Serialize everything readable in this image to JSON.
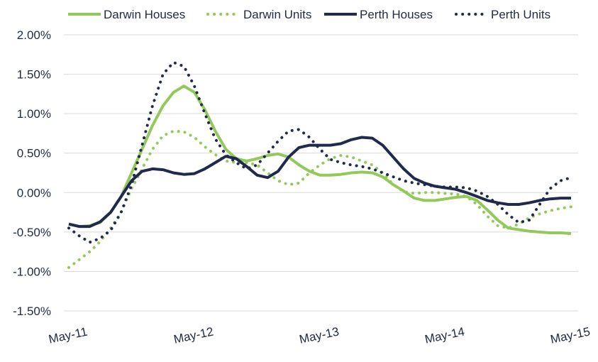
{
  "chart_data": {
    "type": "line",
    "title": "",
    "xlabel": "",
    "ylabel": "",
    "ylim": [
      -0.015,
      0.02
    ],
    "yticks": [
      -0.015,
      -0.01,
      -0.005,
      0,
      0.005,
      0.01,
      0.015,
      0.02
    ],
    "ytick_labels": [
      "-1.50%",
      "-1.00%",
      "-0.50%",
      "0.00%",
      "0.50%",
      "1.00%",
      "1.50%",
      "2.00%"
    ],
    "xtick_labels": [
      "May-11",
      "May-12",
      "May-13",
      "May-14",
      "May-15"
    ],
    "x": [
      "May-11",
      "Jun-11",
      "Jul-11",
      "Aug-11",
      "Sep-11",
      "Oct-11",
      "Nov-11",
      "Dec-11",
      "Jan-12",
      "Feb-12",
      "Mar-12",
      "Apr-12",
      "May-12",
      "Jun-12",
      "Jul-12",
      "Aug-12",
      "Sep-12",
      "Oct-12",
      "Nov-12",
      "Dec-12",
      "Jan-13",
      "Feb-13",
      "Mar-13",
      "Apr-13",
      "May-13",
      "Jun-13",
      "Jul-13",
      "Aug-13",
      "Sep-13",
      "Oct-13",
      "Nov-13",
      "Dec-13",
      "Jan-14",
      "Feb-14",
      "Mar-14",
      "Apr-14",
      "May-14",
      "Jun-14",
      "Jul-14",
      "Aug-14",
      "Sep-14",
      "Oct-14",
      "Nov-14",
      "Dec-14",
      "Jan-15",
      "Feb-15",
      "Mar-15",
      "Apr-15",
      "May-15"
    ],
    "grid": true,
    "legend_position": "top",
    "series": [
      {
        "name": "Darwin Houses",
        "color": "#92c95a",
        "dash": "solid",
        "values": [
          -0.004,
          -0.0043,
          -0.0042,
          -0.0038,
          -0.0025,
          -0.0005,
          0.0025,
          0.0055,
          0.0085,
          0.011,
          0.0127,
          0.0135,
          0.0127,
          0.0105,
          0.0078,
          0.0055,
          0.0043,
          0.004,
          0.0043,
          0.0047,
          0.0049,
          0.0045,
          0.0035,
          0.0027,
          0.0022,
          0.0022,
          0.0023,
          0.0025,
          0.0026,
          0.0025,
          0.002,
          0.001,
          0.0002,
          -0.0007,
          -0.001,
          -0.001,
          -0.0008,
          -0.0006,
          -0.0005,
          -0.001,
          -0.0022,
          -0.0035,
          -0.0045,
          -0.0047,
          -0.0049,
          -0.005,
          -0.0051,
          -0.0051,
          -0.0052
        ]
      },
      {
        "name": "Darwin Units",
        "color": "#92c95a",
        "dash": "dotted",
        "values": [
          -0.0095,
          -0.0085,
          -0.0075,
          -0.0062,
          -0.0045,
          -0.0025,
          0.0005,
          0.003,
          0.0055,
          0.0072,
          0.0078,
          0.0077,
          0.007,
          0.0058,
          0.0048,
          0.004,
          0.0038,
          0.0038,
          0.0035,
          0.0025,
          0.0015,
          0.001,
          0.0012,
          0.0025,
          0.0035,
          0.0043,
          0.0047,
          0.0045,
          0.004,
          0.0035,
          0.0025,
          0.001,
          0.0001,
          -0.0001,
          0.0,
          0.0,
          -0.0001,
          -0.0002,
          -0.0005,
          -0.0015,
          -0.003,
          -0.0042,
          -0.0045,
          -0.004,
          -0.0032,
          -0.0027,
          -0.0023,
          -0.002,
          -0.0018
        ]
      },
      {
        "name": "Perth Houses",
        "color": "#1f2a4c",
        "dash": "solid",
        "values": [
          -0.004,
          -0.0043,
          -0.0043,
          -0.0037,
          -0.0025,
          -0.0005,
          0.0015,
          0.0027,
          0.003,
          0.0029,
          0.0025,
          0.0023,
          0.0024,
          0.003,
          0.0038,
          0.0046,
          0.0043,
          0.0033,
          0.0022,
          0.0019,
          0.0027,
          0.0045,
          0.0057,
          0.006,
          0.006,
          0.006,
          0.0062,
          0.0067,
          0.007,
          0.0069,
          0.006,
          0.0045,
          0.003,
          0.0018,
          0.0012,
          0.0008,
          0.0006,
          0.0004,
          0.0,
          -0.0005,
          -0.001,
          -0.0013,
          -0.0015,
          -0.0015,
          -0.0013,
          -0.001,
          -0.0008,
          -0.0007,
          -0.0007
        ]
      },
      {
        "name": "Perth Units",
        "color": "#1f2a4c",
        "dash": "dotted",
        "values": [
          -0.0045,
          -0.0055,
          -0.0063,
          -0.0058,
          -0.0048,
          -0.0025,
          0.001,
          0.006,
          0.011,
          0.015,
          0.0165,
          0.016,
          0.0135,
          0.01,
          0.0068,
          0.0048,
          0.0038,
          0.003,
          0.0035,
          0.005,
          0.0065,
          0.0078,
          0.008,
          0.007,
          0.0055,
          0.0042,
          0.0038,
          0.0035,
          0.0033,
          0.003,
          0.0025,
          0.002,
          0.0015,
          0.0012,
          0.001,
          0.0008,
          0.0007,
          0.0007,
          0.0006,
          0.0002,
          -0.0005,
          -0.0015,
          -0.0028,
          -0.0038,
          -0.0035,
          -0.0015,
          0.0005,
          0.0015,
          0.0019
        ]
      }
    ]
  }
}
